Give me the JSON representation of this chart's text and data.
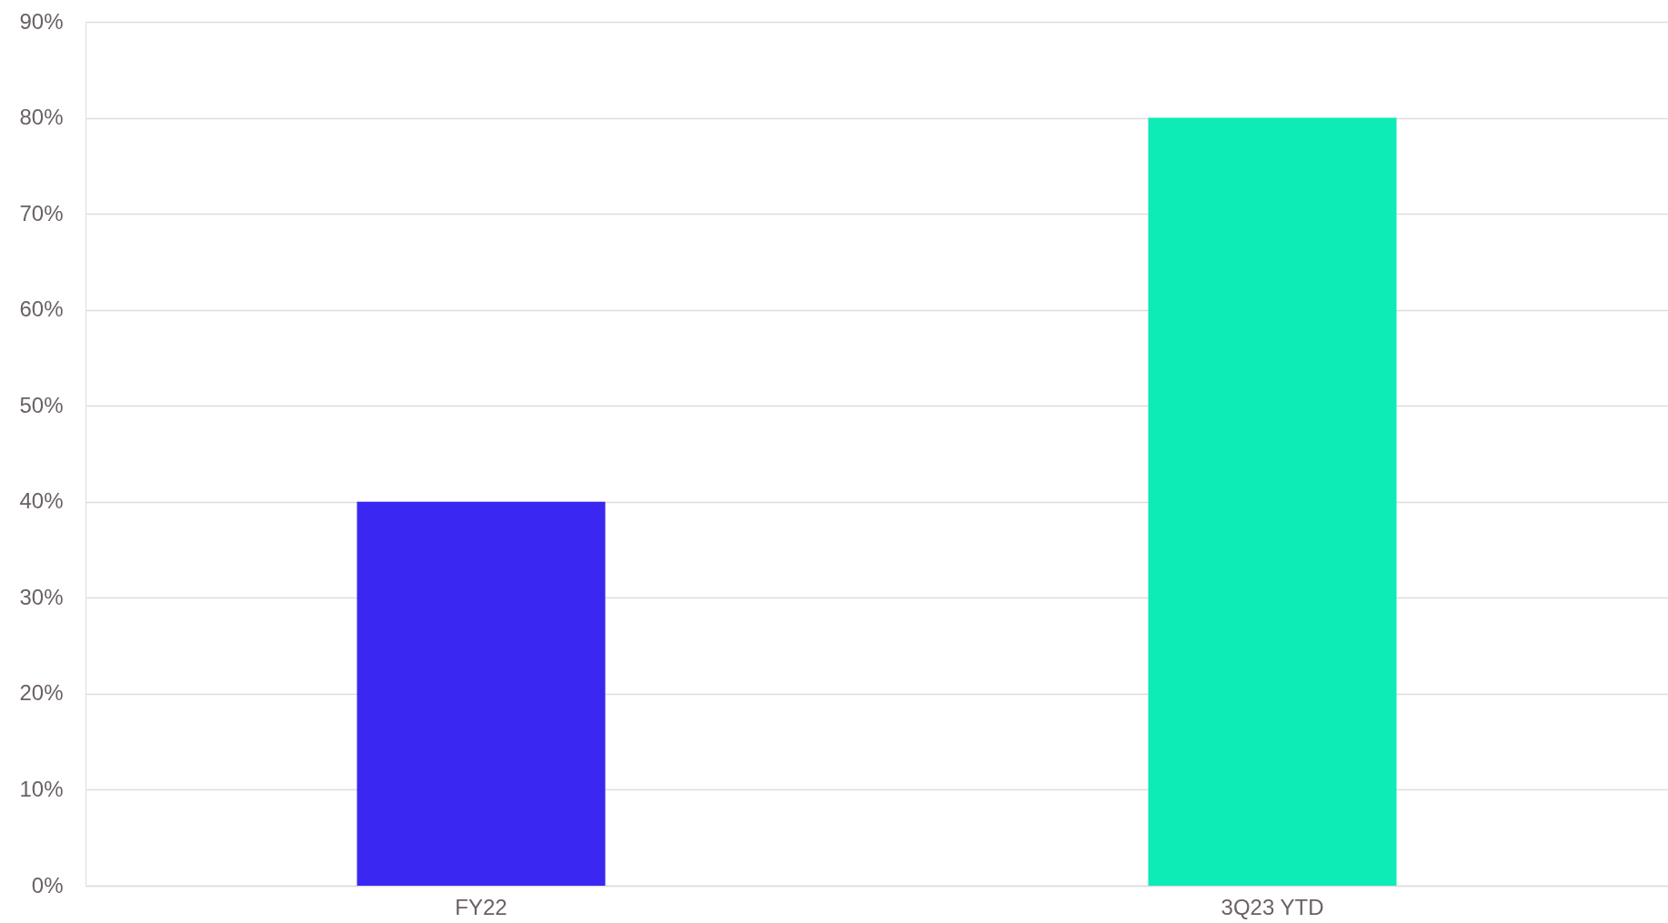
{
  "chart_data": {
    "type": "bar",
    "categories": [
      "FY22",
      "3Q23 YTD"
    ],
    "values": [
      40,
      80
    ],
    "colors": [
      "#3a27f2",
      "#0debb7"
    ],
    "ylim": [
      0,
      90
    ],
    "yticks": [
      {
        "value": 0,
        "label": "0%"
      },
      {
        "value": 10,
        "label": "10%"
      },
      {
        "value": 20,
        "label": "20%"
      },
      {
        "value": 30,
        "label": "30%"
      },
      {
        "value": 40,
        "label": "40%"
      },
      {
        "value": 50,
        "label": "50%"
      },
      {
        "value": 60,
        "label": "60%"
      },
      {
        "value": 70,
        "label": "70%"
      },
      {
        "value": 80,
        "label": "80%"
      },
      {
        "value": 90,
        "label": "90%"
      }
    ],
    "grid": "y",
    "legend": false
  }
}
